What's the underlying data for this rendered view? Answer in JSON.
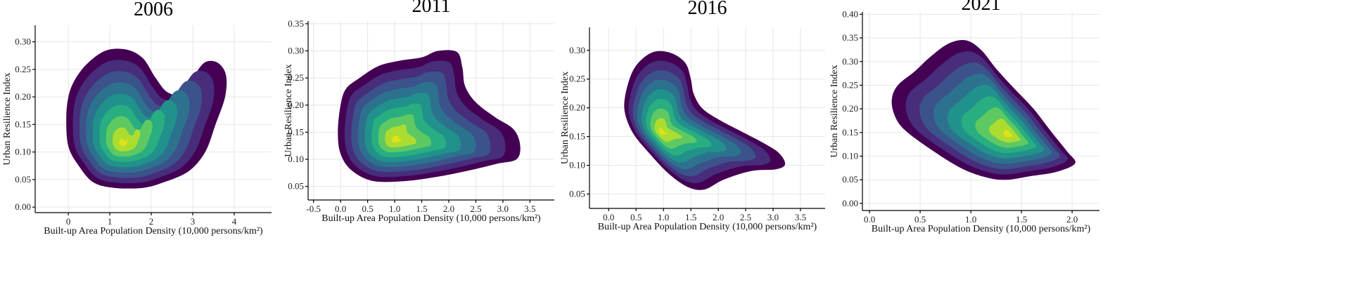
{
  "chart_data": [
    {
      "type": "kde-density",
      "title": "2006",
      "xlabel": "Built-up Area Population Density (10,000 persons/km²)",
      "ylabel": "Urban Resilience Index",
      "xlim": [
        -0.8,
        4.9
      ],
      "ylim": [
        -0.01,
        0.33
      ],
      "xticks": [
        0,
        1,
        2,
        3,
        4
      ],
      "yticks": [
        0.0,
        0.05,
        0.1,
        0.15,
        0.2,
        0.25,
        0.3
      ],
      "grid": true,
      "levels": 8,
      "peak": [
        1.3,
        0.115
      ],
      "outline": [
        [
          -0.05,
          0.16
        ],
        [
          0.0,
          0.2
        ],
        [
          0.15,
          0.23
        ],
        [
          0.45,
          0.26
        ],
        [
          0.9,
          0.284
        ],
        [
          1.4,
          0.286
        ],
        [
          1.8,
          0.27
        ],
        [
          2.1,
          0.235
        ],
        [
          2.4,
          0.208
        ],
        [
          2.8,
          0.205
        ],
        [
          3.05,
          0.24
        ],
        [
          3.3,
          0.263
        ],
        [
          3.6,
          0.262
        ],
        [
          3.8,
          0.24
        ],
        [
          3.78,
          0.2
        ],
        [
          3.55,
          0.15
        ],
        [
          3.3,
          0.1
        ],
        [
          2.9,
          0.065
        ],
        [
          2.3,
          0.045
        ],
        [
          1.8,
          0.035
        ],
        [
          1.1,
          0.035
        ],
        [
          0.6,
          0.045
        ],
        [
          0.25,
          0.075
        ],
        [
          0.0,
          0.11
        ]
      ]
    },
    {
      "type": "kde-density",
      "title": "2011",
      "xlabel": "Built-up Area Population Density (10,000 persons/km²)",
      "ylabel": "Urban Resilience Index",
      "xlim": [
        -0.6,
        3.95
      ],
      "ylim": [
        0.025,
        0.355
      ],
      "xticks": [
        -0.5,
        0.0,
        0.5,
        1.0,
        1.5,
        2.0,
        2.5,
        3.0,
        3.5
      ],
      "yticks": [
        0.05,
        0.1,
        0.15,
        0.2,
        0.25,
        0.3,
        0.35
      ],
      "grid": true,
      "levels": 8,
      "peak": [
        1.0,
        0.135
      ],
      "outline": [
        [
          0.0,
          0.2
        ],
        [
          0.1,
          0.23
        ],
        [
          0.35,
          0.25
        ],
        [
          0.7,
          0.272
        ],
        [
          1.1,
          0.282
        ],
        [
          1.5,
          0.288
        ],
        [
          1.8,
          0.3
        ],
        [
          2.15,
          0.298
        ],
        [
          2.25,
          0.27
        ],
        [
          2.3,
          0.235
        ],
        [
          2.5,
          0.205
        ],
        [
          2.85,
          0.178
        ],
        [
          3.2,
          0.155
        ],
        [
          3.32,
          0.125
        ],
        [
          3.25,
          0.1
        ],
        [
          2.9,
          0.092
        ],
        [
          2.4,
          0.08
        ],
        [
          1.8,
          0.068
        ],
        [
          1.2,
          0.06
        ],
        [
          0.6,
          0.06
        ],
        [
          0.2,
          0.08
        ],
        [
          0.0,
          0.11
        ],
        [
          -0.05,
          0.15
        ]
      ]
    },
    {
      "type": "kde-density",
      "title": "2016",
      "xlabel": "Built-up Area Population Density (10,000 persons/km²)",
      "ylabel": "Urban Resilience Index",
      "xlim": [
        -0.35,
        3.95
      ],
      "ylim": [
        0.025,
        0.34
      ],
      "xticks": [
        0.0,
        0.5,
        1.0,
        1.5,
        2.0,
        2.5,
        3.0,
        3.5
      ],
      "yticks": [
        0.05,
        0.1,
        0.15,
        0.2,
        0.25,
        0.3
      ],
      "grid": true,
      "levels": 8,
      "peak": [
        0.95,
        0.158
      ],
      "outline": [
        [
          0.3,
          0.22
        ],
        [
          0.42,
          0.26
        ],
        [
          0.6,
          0.284
        ],
        [
          0.85,
          0.298
        ],
        [
          1.15,
          0.295
        ],
        [
          1.4,
          0.278
        ],
        [
          1.5,
          0.25
        ],
        [
          1.55,
          0.225
        ],
        [
          1.7,
          0.2
        ],
        [
          2.0,
          0.18
        ],
        [
          2.4,
          0.16
        ],
        [
          2.8,
          0.14
        ],
        [
          3.1,
          0.122
        ],
        [
          3.22,
          0.102
        ],
        [
          3.05,
          0.093
        ],
        [
          2.6,
          0.09
        ],
        [
          2.1,
          0.075
        ],
        [
          1.75,
          0.058
        ],
        [
          1.45,
          0.062
        ],
        [
          1.1,
          0.085
        ],
        [
          0.75,
          0.12
        ],
        [
          0.45,
          0.155
        ],
        [
          0.3,
          0.19
        ]
      ]
    },
    {
      "type": "kde-density",
      "title": "2021",
      "xlabel": "Built-up Area Population Density (10,000 persons/km²)",
      "ylabel": "Urban Resilience Index",
      "xlim": [
        -0.07,
        2.27
      ],
      "ylim": [
        -0.015,
        0.405
      ],
      "xticks": [
        0.0,
        0.5,
        1.0,
        1.5,
        2.0
      ],
      "yticks": [
        0.0,
        0.05,
        0.1,
        0.15,
        0.2,
        0.25,
        0.3,
        0.35,
        0.4
      ],
      "grid": true,
      "levels": 8,
      "peak": [
        1.38,
        0.145
      ],
      "outline": [
        [
          0.22,
          0.22
        ],
        [
          0.28,
          0.25
        ],
        [
          0.45,
          0.28
        ],
        [
          0.6,
          0.31
        ],
        [
          0.78,
          0.338
        ],
        [
          0.95,
          0.345
        ],
        [
          1.1,
          0.325
        ],
        [
          1.25,
          0.285
        ],
        [
          1.42,
          0.245
        ],
        [
          1.62,
          0.2
        ],
        [
          1.8,
          0.15
        ],
        [
          1.95,
          0.11
        ],
        [
          2.03,
          0.085
        ],
        [
          1.85,
          0.067
        ],
        [
          1.6,
          0.058
        ],
        [
          1.35,
          0.05
        ],
        [
          1.15,
          0.055
        ],
        [
          0.9,
          0.075
        ],
        [
          0.6,
          0.115
        ],
        [
          0.35,
          0.155
        ],
        [
          0.25,
          0.185
        ]
      ]
    }
  ]
}
